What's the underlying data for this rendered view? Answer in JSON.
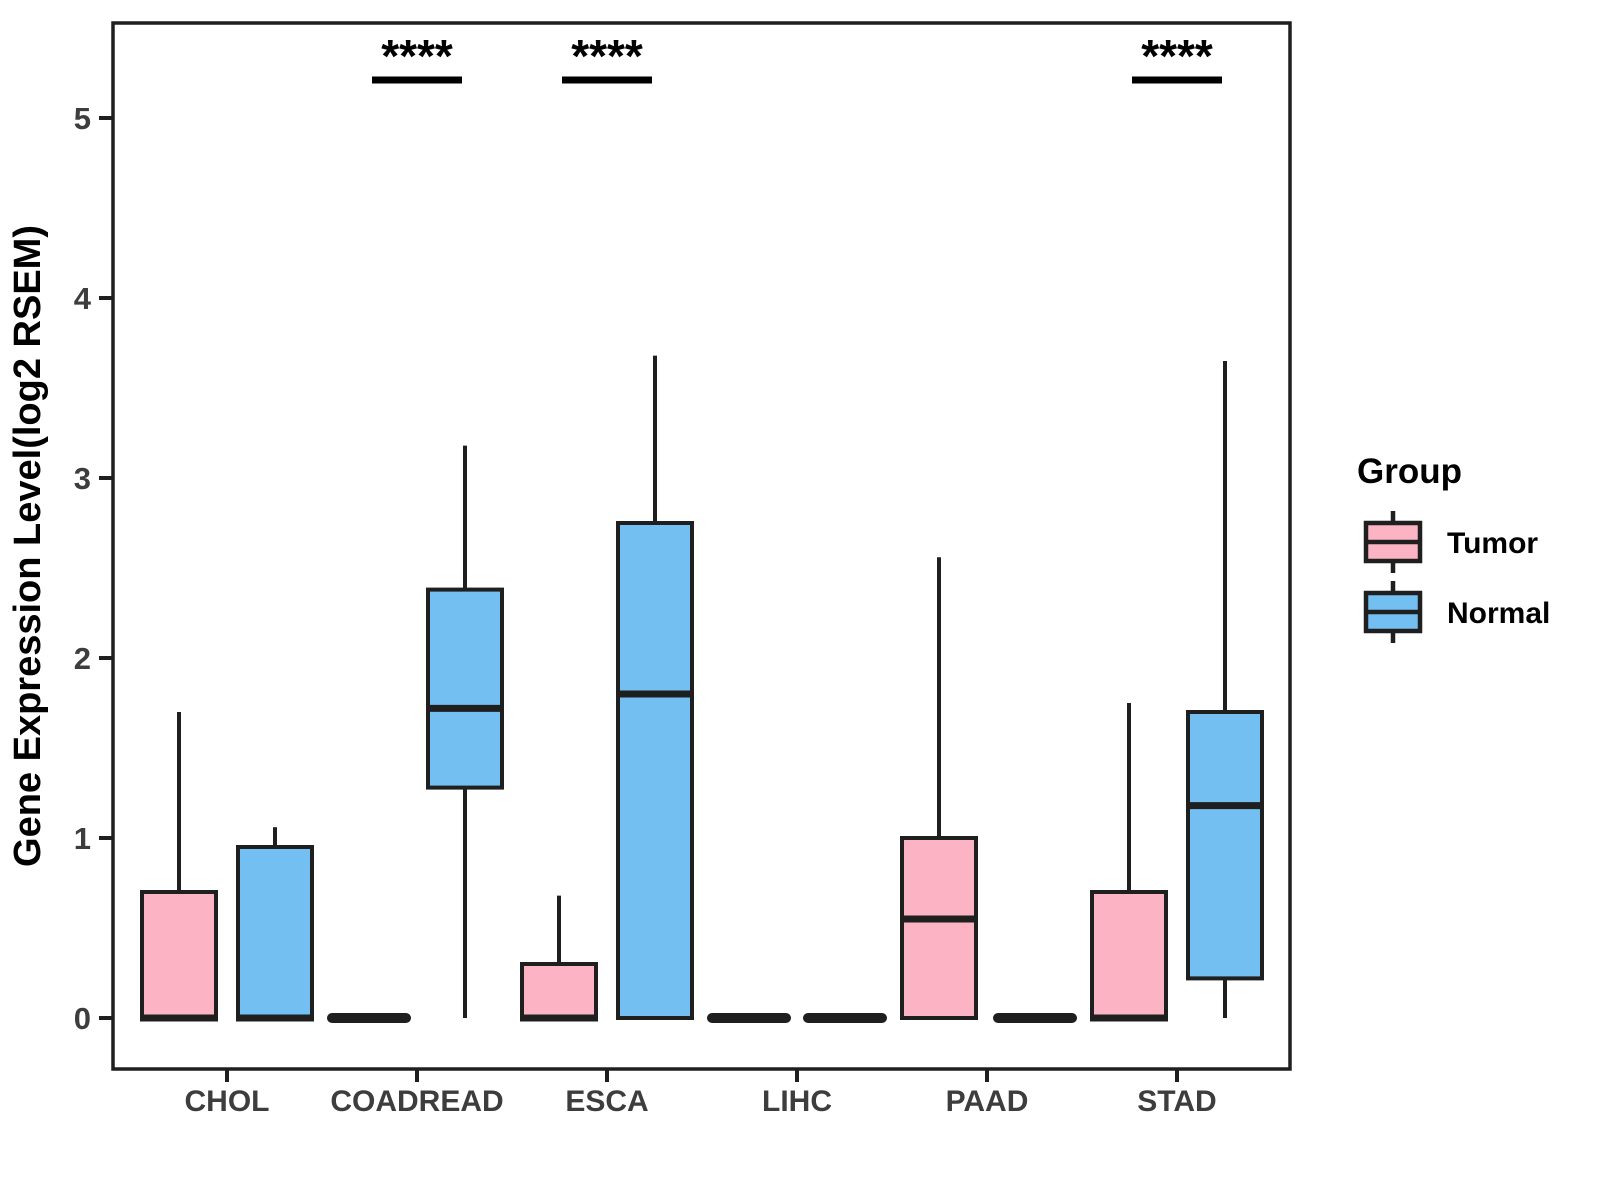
{
  "figure": {
    "y_axis_title": "Gene Expression Level(log2 RSEM)",
    "significance_note": "****"
  },
  "legend": {
    "title": "Group",
    "items": [
      {
        "label": "Tumor",
        "color": "#FCB3C3"
      },
      {
        "label": "Normal",
        "color": "#74BFF2"
      }
    ]
  },
  "chart_data": {
    "type": "grouped_boxplot",
    "title": "",
    "xlabel": "",
    "ylabel": "Gene Expression Level(log2 RSEM)",
    "categories": [
      "CHOL",
      "COADREAD",
      "ESCA",
      "LIHC",
      "PAAD",
      "STAD"
    ],
    "y_ticks": [
      0,
      1,
      2,
      3,
      4,
      5
    ],
    "ylim": [
      -0.28,
      5.53
    ],
    "grid": false,
    "legend_position": "right",
    "series": [
      {
        "name": "Tumor",
        "color": "#FCB3C3",
        "boxes": [
          {
            "category": "CHOL",
            "low": 0,
            "q1": 0,
            "median": 0,
            "q3": 0.7,
            "high": 1.7
          },
          {
            "category": "COADREAD",
            "low": 0,
            "q1": 0,
            "median": 0,
            "q3": 0,
            "high": 0
          },
          {
            "category": "ESCA",
            "low": 0,
            "q1": 0,
            "median": 0,
            "q3": 0.3,
            "high": 0.68
          },
          {
            "category": "LIHC",
            "low": 0,
            "q1": 0,
            "median": 0,
            "q3": 0,
            "high": 0
          },
          {
            "category": "PAAD",
            "low": 0,
            "q1": 0,
            "median": 0.55,
            "q3": 1.0,
            "high": 2.56
          },
          {
            "category": "STAD",
            "low": 0,
            "q1": 0,
            "median": 0,
            "q3": 0.7,
            "high": 1.75
          }
        ]
      },
      {
        "name": "Normal",
        "color": "#74BFF2",
        "boxes": [
          {
            "category": "CHOL",
            "low": 0,
            "q1": 0,
            "median": 0,
            "q3": 0.95,
            "high": 1.06
          },
          {
            "category": "COADREAD",
            "low": 0,
            "q1": 1.28,
            "median": 1.72,
            "q3": 2.38,
            "high": 3.18
          },
          {
            "category": "ESCA",
            "low": 0,
            "q1": 0,
            "median": 1.8,
            "q3": 2.75,
            "high": 3.68
          },
          {
            "category": "LIHC",
            "low": 0,
            "q1": 0,
            "median": 0,
            "q3": 0,
            "high": 0
          },
          {
            "category": "PAAD",
            "low": 0,
            "q1": 0,
            "median": 0,
            "q3": 0,
            "high": 0
          },
          {
            "category": "STAD",
            "low": 0,
            "q1": 0.22,
            "median": 1.18,
            "q3": 1.7,
            "high": 3.65
          }
        ]
      }
    ],
    "significance": [
      {
        "category": "COADREAD",
        "label": "****"
      },
      {
        "category": "ESCA",
        "label": "****"
      },
      {
        "category": "STAD",
        "label": "****"
      }
    ]
  },
  "colors": {
    "box_stroke": "#1F1F1F",
    "axis_text": "#3D3D3D",
    "title_text": "#000000",
    "panel_border": "#1F1F1F"
  }
}
